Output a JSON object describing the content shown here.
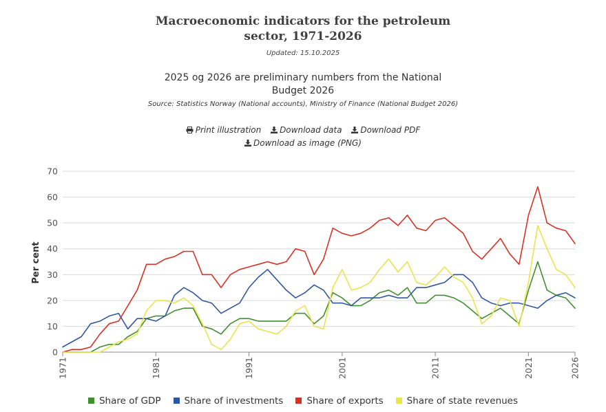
{
  "header": {
    "title_line1": "Macroeconomic indicators for the petroleum",
    "title_line2": "sector, 1971-2026",
    "updated": "Updated: 15.10.2025",
    "subtitle_line1": "2025 og 2026 are preliminary numbers from the National",
    "subtitle_line2": "Budget 2026",
    "source": "Source: Statistics Norway (National accounts), Ministry of Finance (National Budget 2026)"
  },
  "links": {
    "print": "Print illustration",
    "download_data": "Download data",
    "download_pdf": "Download PDF",
    "download_image": "Download as image (PNG)"
  },
  "icons": [
    "printer-icon",
    "download-icon"
  ],
  "chart_data": {
    "type": "line",
    "ylabel": "Per cent",
    "xlabel": "",
    "ylim": [
      0,
      70
    ],
    "yticks": [
      0,
      10,
      20,
      30,
      40,
      50,
      60,
      70
    ],
    "xlim": [
      1971,
      2026
    ],
    "xticks": [
      1971,
      1981,
      1991,
      2001,
      2011,
      2021,
      2026
    ],
    "grid": true,
    "legend_position": "bottom",
    "x": [
      1971,
      1972,
      1973,
      1974,
      1975,
      1976,
      1977,
      1978,
      1979,
      1980,
      1981,
      1982,
      1983,
      1984,
      1985,
      1986,
      1987,
      1988,
      1989,
      1990,
      1991,
      1992,
      1993,
      1994,
      1995,
      1996,
      1997,
      1998,
      1999,
      2000,
      2001,
      2002,
      2003,
      2004,
      2005,
      2006,
      2007,
      2008,
      2009,
      2010,
      2011,
      2012,
      2013,
      2014,
      2015,
      2016,
      2017,
      2018,
      2019,
      2020,
      2021,
      2022,
      2023,
      2024,
      2025,
      2026
    ],
    "series": [
      {
        "name": "Share of GDP",
        "color": "#3f8f2f",
        "values": [
          0,
          0,
          0,
          0,
          2,
          3,
          3,
          6,
          8,
          13,
          14,
          14,
          16,
          17,
          17,
          10,
          9,
          7,
          11,
          13,
          13,
          12,
          12,
          12,
          12,
          15,
          15,
          11,
          14,
          23,
          21,
          18,
          18,
          20,
          23,
          24,
          22,
          25,
          19,
          19,
          22,
          22,
          21,
          19,
          16,
          13,
          15,
          17,
          14,
          11,
          24,
          35,
          24,
          22,
          21,
          17
        ]
      },
      {
        "name": "Share of investments",
        "color": "#2f56a4",
        "values": [
          2,
          4,
          6,
          11,
          12,
          14,
          15,
          9,
          13,
          13,
          12,
          14,
          22,
          25,
          23,
          20,
          19,
          15,
          17,
          19,
          25,
          29,
          32,
          28,
          24,
          21,
          23,
          26,
          24,
          19,
          19,
          18,
          21,
          21,
          21,
          22,
          21,
          21,
          25,
          25,
          26,
          27,
          30,
          30,
          27,
          21,
          19,
          18,
          19,
          19,
          18,
          17,
          20,
          22,
          23,
          21
        ]
      },
      {
        "name": "Share of exports",
        "color": "#d93022",
        "values": [
          0,
          1,
          1,
          2,
          7,
          11,
          12,
          18,
          24,
          34,
          34,
          36,
          37,
          39,
          39,
          30,
          30,
          25,
          30,
          32,
          33,
          34,
          35,
          34,
          35,
          40,
          39,
          30,
          36,
          48,
          46,
          45,
          46,
          48,
          51,
          52,
          49,
          53,
          48,
          47,
          51,
          52,
          49,
          46,
          39,
          36,
          40,
          44,
          38,
          34,
          53,
          64,
          50,
          48,
          47,
          42
        ]
      },
      {
        "name": "Share of state revenues",
        "color": "#ebe34a",
        "values": [
          0,
          0,
          0,
          0,
          0,
          2,
          4,
          5,
          7,
          16,
          20,
          20,
          19,
          21,
          18,
          11,
          3,
          1,
          5,
          11,
          12,
          9,
          8,
          7,
          10,
          16,
          18,
          10,
          9,
          25,
          32,
          24,
          25,
          27,
          32,
          36,
          31,
          35,
          27,
          26,
          29,
          33,
          29,
          27,
          21,
          11,
          14,
          21,
          20,
          10,
          27,
          49,
          40,
          32,
          30,
          25
        ]
      }
    ]
  }
}
